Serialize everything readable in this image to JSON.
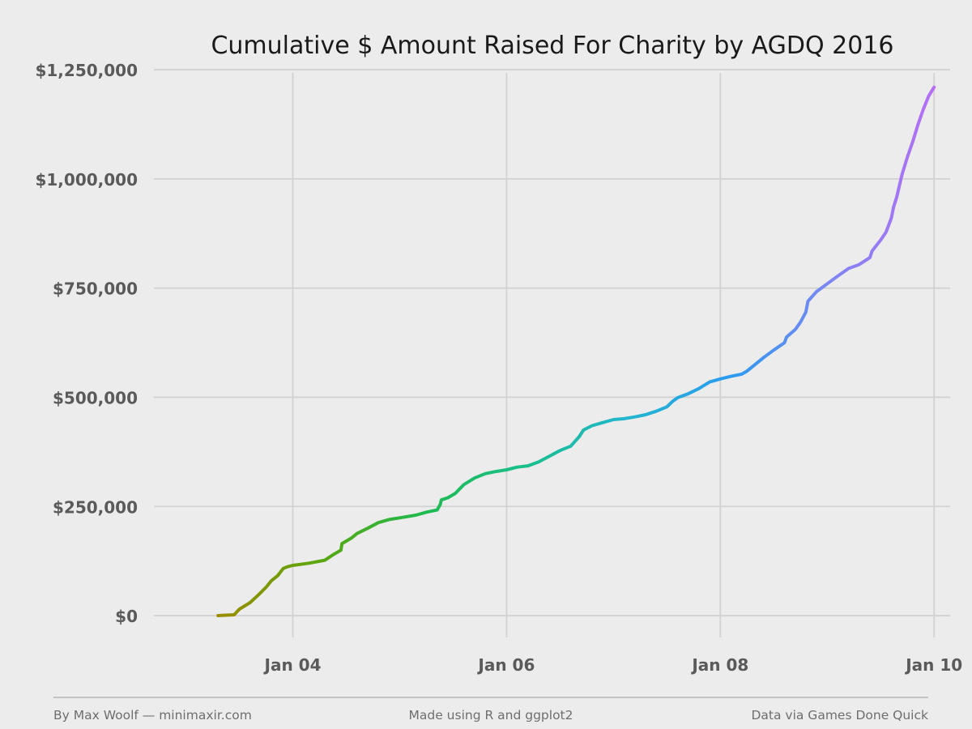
{
  "chart_data": {
    "type": "line",
    "title": "Cumulative $ Amount Raised For Charity by AGDQ 2016",
    "xlabel": "",
    "ylabel": "",
    "xlim": [
      2.7,
      10.15
    ],
    "ylim": [
      -50000,
      1265000
    ],
    "y_ticks": [
      0,
      250000,
      500000,
      750000,
      1000000,
      1250000
    ],
    "y_tick_labels": [
      "$0",
      "$250,000",
      "$500,000",
      "$750,000",
      "$1,000,000",
      "$1,250,000"
    ],
    "x_ticks": [
      4,
      6,
      8,
      10
    ],
    "x_tick_labels": [
      "Jan 04",
      "Jan 06",
      "Jan 08",
      "Jan 10"
    ],
    "grid": true,
    "legend": "none",
    "color_gradient": [
      "#9c8c00",
      "#5aa70f",
      "#1fba4e",
      "#1abf8c",
      "#22b6cf",
      "#2a9bf0",
      "#7f86f3",
      "#b56ef5"
    ],
    "series": [
      {
        "x": [
          3.3,
          3.45,
          3.5,
          3.6,
          3.68,
          3.75,
          3.8,
          3.86,
          3.91,
          3.95,
          4.0,
          4.15,
          4.3,
          4.38,
          4.45,
          4.46,
          4.55,
          4.6,
          4.7,
          4.8,
          4.9,
          5.0,
          5.15,
          5.25,
          5.35,
          5.38,
          5.39,
          5.45,
          5.52,
          5.6,
          5.7,
          5.8,
          5.9,
          6.0,
          6.1,
          6.2,
          6.3,
          6.4,
          6.5,
          6.6,
          6.68,
          6.72,
          6.8,
          6.9,
          7.0,
          7.1,
          7.2,
          7.3,
          7.4,
          7.5,
          7.55,
          7.6,
          7.7,
          7.8,
          7.9,
          8.0,
          8.1,
          8.2,
          8.25,
          8.3,
          8.4,
          8.5,
          8.6,
          8.62,
          8.7,
          8.75,
          8.8,
          8.82,
          8.9,
          9.0,
          9.1,
          9.2,
          9.3,
          9.4,
          9.42,
          9.5,
          9.55,
          9.6,
          9.62,
          9.65,
          9.7,
          9.75,
          9.8,
          9.85,
          9.9,
          9.95,
          10.0
        ],
        "y": [
          0,
          2000,
          15000,
          30000,
          48000,
          65000,
          80000,
          92000,
          108000,
          112000,
          115000,
          120000,
          127000,
          140000,
          150000,
          165000,
          178000,
          188000,
          200000,
          213000,
          220000,
          224000,
          230000,
          237000,
          242000,
          255000,
          265000,
          270000,
          280000,
          300000,
          315000,
          325000,
          330000,
          334000,
          340000,
          343000,
          352000,
          365000,
          378000,
          388000,
          410000,
          425000,
          435000,
          442000,
          449000,
          451000,
          455000,
          460000,
          468000,
          478000,
          490000,
          499000,
          508000,
          520000,
          535000,
          542000,
          548000,
          553000,
          560000,
          570000,
          590000,
          608000,
          625000,
          638000,
          655000,
          672000,
          695000,
          720000,
          742000,
          760000,
          778000,
          795000,
          804000,
          820000,
          835000,
          860000,
          878000,
          910000,
          935000,
          958000,
          1010000,
          1050000,
          1085000,
          1125000,
          1160000,
          1190000,
          1210000
        ]
      }
    ]
  },
  "footer": {
    "left": "By Max Woolf — minimaxir.com",
    "center": "Made using R and ggplot2",
    "right": "Data via Games Done Quick"
  }
}
